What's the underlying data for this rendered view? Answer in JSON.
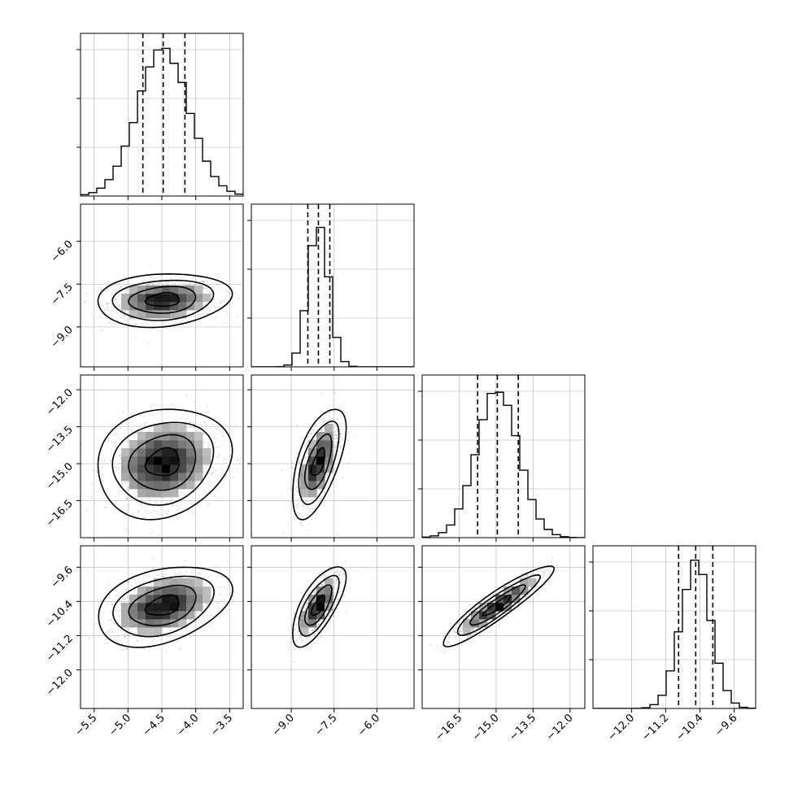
{
  "chart_data": {
    "type": "corner",
    "grid": true,
    "parameters": [
      {
        "id": "p0",
        "range": [
          -5.7,
          -3.3
        ],
        "ticks": [
          {
            "v": -5.5,
            "t": "−5.5"
          },
          {
            "v": -5.0,
            "t": "−5.0"
          },
          {
            "v": -4.5,
            "t": "−4.5"
          },
          {
            "v": -4.0,
            "t": "−4.0"
          },
          {
            "v": -3.5,
            "t": "−3.5"
          }
        ],
        "mean": -4.48,
        "sd": 0.38,
        "quantiles": [
          -4.78,
          -4.48,
          -4.16
        ]
      },
      {
        "id": "p1",
        "range": [
          -10.4,
          -4.7
        ],
        "ticks": [
          {
            "v": -9.0,
            "t": "−9.0"
          },
          {
            "v": -7.5,
            "t": "−7.5"
          },
          {
            "v": -6.0,
            "t": "−6.0"
          }
        ],
        "mean": -8.05,
        "sd": 0.36,
        "quantiles": [
          -8.42,
          -8.05,
          -7.65
        ]
      },
      {
        "id": "p2",
        "range": [
          -18.0,
          -11.4
        ],
        "ticks": [
          {
            "v": -16.5,
            "t": "−16.5"
          },
          {
            "v": -15.0,
            "t": "−15.0"
          },
          {
            "v": -13.5,
            "t": "−13.5"
          },
          {
            "v": -12.0,
            "t": "−12.0"
          }
        ],
        "mean": -14.95,
        "sd": 0.86,
        "quantiles": [
          -15.75,
          -14.95,
          -14.1
        ]
      },
      {
        "id": "p3",
        "range": [
          -12.9,
          -9.1
        ],
        "ticks": [
          {
            "v": -12.0,
            "t": "−12.0"
          },
          {
            "v": -11.2,
            "t": "−11.2"
          },
          {
            "v": -10.4,
            "t": "−10.4"
          },
          {
            "v": -9.6,
            "t": "−9.6"
          }
        ],
        "mean": -10.5,
        "sd": 0.36,
        "quantiles": [
          -10.9,
          -10.5,
          -10.1
        ]
      }
    ],
    "correlations": {
      "1-0": 0.15,
      "2-0": 0.15,
      "2-1": 0.6,
      "3-0": 0.35,
      "3-1": 0.7,
      "3-2": 0.92
    }
  }
}
